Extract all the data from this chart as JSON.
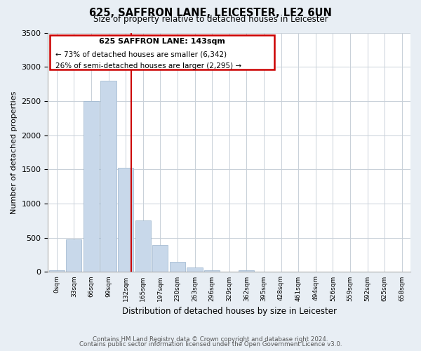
{
  "title": "625, SAFFRON LANE, LEICESTER, LE2 6UN",
  "subtitle": "Size of property relative to detached houses in Leicester",
  "xlabel": "Distribution of detached houses by size in Leicester",
  "ylabel": "Number of detached properties",
  "bar_labels": [
    "0sqm",
    "33sqm",
    "66sqm",
    "99sqm",
    "132sqm",
    "165sqm",
    "197sqm",
    "230sqm",
    "263sqm",
    "296sqm",
    "329sqm",
    "362sqm",
    "395sqm",
    "428sqm",
    "461sqm",
    "494sqm",
    "526sqm",
    "559sqm",
    "592sqm",
    "625sqm",
    "658sqm"
  ],
  "bar_heights": [
    20,
    480,
    2500,
    2800,
    1520,
    750,
    390,
    145,
    70,
    25,
    0,
    20,
    0,
    0,
    0,
    0,
    0,
    0,
    0,
    0,
    0
  ],
  "bar_color": "#c8d8ea",
  "bar_edge_color": "#9ab4cc",
  "ylim": [
    0,
    3500
  ],
  "yticks": [
    0,
    500,
    1000,
    1500,
    2000,
    2500,
    3000,
    3500
  ],
  "vline_color": "#cc0000",
  "annotation_title": "625 SAFFRON LANE: 143sqm",
  "annotation_line1": "← 73% of detached houses are smaller (6,342)",
  "annotation_line2": "26% of semi-detached houses are larger (2,295) →",
  "annotation_box_color": "#cc0000",
  "footer_line1": "Contains HM Land Registry data © Crown copyright and database right 2024.",
  "footer_line2": "Contains public sector information licensed under the Open Government Licence v3.0.",
  "background_color": "#e8eef4",
  "plot_background_color": "#ffffff",
  "grid_color": "#c8d0d8"
}
